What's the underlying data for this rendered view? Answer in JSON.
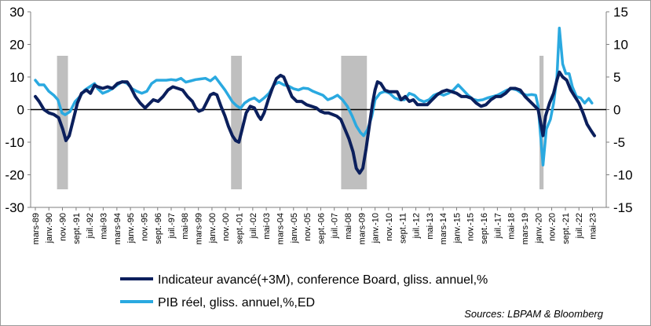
{
  "chart_data": {
    "type": "line",
    "title": "",
    "xlabel": "",
    "ylabel": "",
    "ylim": [
      -30,
      30
    ],
    "y_ticks": [
      "30",
      "20",
      "10",
      "0",
      "-10",
      "-20",
      "-30"
    ],
    "y2lim": [
      -15,
      15
    ],
    "y2_ticks": [
      "15",
      "10",
      "5",
      "0",
      "-5",
      "-10",
      "-15"
    ],
    "x_range": [
      1989.17,
      2023.5
    ],
    "x_ticks": [
      {
        "label": "mars-89",
        "t": 1989.17
      },
      {
        "label": "janv.-90",
        "t": 1990.0
      },
      {
        "label": "nov.-90",
        "t": 1990.83
      },
      {
        "label": "sept.-91",
        "t": 1991.67
      },
      {
        "label": "juil.-92",
        "t": 1992.5
      },
      {
        "label": "mai-93",
        "t": 1993.33
      },
      {
        "label": "mars-94",
        "t": 1994.17
      },
      {
        "label": "janv.-95",
        "t": 1995.0
      },
      {
        "label": "nov.-95",
        "t": 1995.83
      },
      {
        "label": "sept.-96",
        "t": 1996.67
      },
      {
        "label": "juil.-97",
        "t": 1997.5
      },
      {
        "label": "mai-98",
        "t": 1998.33
      },
      {
        "label": "mars-99",
        "t": 1999.17
      },
      {
        "label": "janv.-00",
        "t": 2000.0
      },
      {
        "label": "nov.-00",
        "t": 2000.83
      },
      {
        "label": "sept.-01",
        "t": 2001.67
      },
      {
        "label": "juil.-02",
        "t": 2002.5
      },
      {
        "label": "mai-03",
        "t": 2003.33
      },
      {
        "label": "mars-04",
        "t": 2004.17
      },
      {
        "label": "janv.-05",
        "t": 2005.0
      },
      {
        "label": "nov.-05",
        "t": 2005.83
      },
      {
        "label": "sept.-06",
        "t": 2006.67
      },
      {
        "label": "juil.-07",
        "t": 2007.5
      },
      {
        "label": "mai-08",
        "t": 2008.33
      },
      {
        "label": "mars-09",
        "t": 2009.17
      },
      {
        "label": "janv.-10",
        "t": 2010.0
      },
      {
        "label": "nov.-10",
        "t": 2010.83
      },
      {
        "label": "sept.-11",
        "t": 2011.67
      },
      {
        "label": "juil.-12",
        "t": 2012.5
      },
      {
        "label": "mai-13",
        "t": 2013.33
      },
      {
        "label": "mars-14",
        "t": 2014.17
      },
      {
        "label": "janv.-15",
        "t": 2015.0
      },
      {
        "label": "nov.-15",
        "t": 2015.83
      },
      {
        "label": "sept.-16",
        "t": 2016.67
      },
      {
        "label": "juil.-17",
        "t": 2017.5
      },
      {
        "label": "mai-18",
        "t": 2018.33
      },
      {
        "label": "mars-19",
        "t": 2019.17
      },
      {
        "label": "janv.-20",
        "t": 2020.0
      },
      {
        "label": "nov.-20",
        "t": 2020.83
      },
      {
        "label": "sept.-21",
        "t": 2021.67
      },
      {
        "label": "juil.-22",
        "t": 2022.5
      },
      {
        "label": "mai-23",
        "t": 2023.33
      }
    ],
    "recessions": [
      [
        1990.5,
        1991.17
      ],
      [
        2001.17,
        2001.83
      ],
      [
        2007.92,
        2009.5
      ],
      [
        2020.08,
        2020.33
      ]
    ],
    "legend_position": "bottom",
    "grid": false,
    "series": [
      {
        "name": "Indicateur avancé(+3M), conference Board, gliss. annuel,%",
        "axis": "left",
        "color": "#0b1f5c",
        "points": [
          [
            1989.17,
            4
          ],
          [
            1989.4,
            2.5
          ],
          [
            1989.7,
            0
          ],
          [
            1990.0,
            -1
          ],
          [
            1990.3,
            -1.5
          ],
          [
            1990.6,
            -2.5
          ],
          [
            1990.85,
            -6
          ],
          [
            1991.05,
            -9.5
          ],
          [
            1991.25,
            -8
          ],
          [
            1991.5,
            -3
          ],
          [
            1991.75,
            2
          ],
          [
            1992.0,
            5
          ],
          [
            1992.3,
            6
          ],
          [
            1992.55,
            5
          ],
          [
            1992.8,
            7.5
          ],
          [
            1993.0,
            7
          ],
          [
            1993.3,
            6.5
          ],
          [
            1993.6,
            7
          ],
          [
            1993.9,
            6.5
          ],
          [
            1994.2,
            8
          ],
          [
            1994.5,
            8.5
          ],
          [
            1994.8,
            8.5
          ],
          [
            1995.0,
            7
          ],
          [
            1995.3,
            4
          ],
          [
            1995.6,
            2
          ],
          [
            1995.9,
            0.5
          ],
          [
            1996.1,
            1.5
          ],
          [
            1996.4,
            3
          ],
          [
            1996.7,
            2.5
          ],
          [
            1997.0,
            4
          ],
          [
            1997.3,
            6
          ],
          [
            1997.6,
            7
          ],
          [
            1997.9,
            6.5
          ],
          [
            1998.2,
            6
          ],
          [
            1998.5,
            4
          ],
          [
            1998.8,
            2.5
          ],
          [
            1999.0,
            0.5
          ],
          [
            1999.2,
            -0.5
          ],
          [
            1999.45,
            0
          ],
          [
            1999.7,
            2.5
          ],
          [
            1999.9,
            4.5
          ],
          [
            2000.1,
            5
          ],
          [
            2000.3,
            4.5
          ],
          [
            2000.55,
            1
          ],
          [
            2000.8,
            -2
          ],
          [
            2001.0,
            -5
          ],
          [
            2001.25,
            -8
          ],
          [
            2001.45,
            -9.5
          ],
          [
            2001.65,
            -10
          ],
          [
            2001.85,
            -6
          ],
          [
            2002.1,
            -1
          ],
          [
            2002.35,
            1
          ],
          [
            2002.6,
            0.5
          ],
          [
            2002.85,
            -2
          ],
          [
            2003.0,
            -3
          ],
          [
            2003.2,
            -1
          ],
          [
            2003.45,
            3
          ],
          [
            2003.7,
            6.5
          ],
          [
            2003.95,
            9.5
          ],
          [
            2004.2,
            10.5
          ],
          [
            2004.4,
            10
          ],
          [
            2004.65,
            7
          ],
          [
            2004.9,
            4
          ],
          [
            2005.2,
            2.5
          ],
          [
            2005.5,
            2.5
          ],
          [
            2005.8,
            1.5
          ],
          [
            2006.1,
            1
          ],
          [
            2006.4,
            0.5
          ],
          [
            2006.65,
            -0.5
          ],
          [
            2006.9,
            -1
          ],
          [
            2007.15,
            -1
          ],
          [
            2007.4,
            -1.5
          ],
          [
            2007.65,
            -2
          ],
          [
            2007.9,
            -3
          ],
          [
            2008.15,
            -6
          ],
          [
            2008.4,
            -9
          ],
          [
            2008.65,
            -13
          ],
          [
            2008.85,
            -18
          ],
          [
            2009.05,
            -19.5
          ],
          [
            2009.25,
            -18
          ],
          [
            2009.45,
            -12
          ],
          [
            2009.65,
            -5
          ],
          [
            2009.85,
            2
          ],
          [
            2010.0,
            6
          ],
          [
            2010.15,
            8.5
          ],
          [
            2010.35,
            8
          ],
          [
            2010.6,
            6
          ],
          [
            2010.85,
            5.5
          ],
          [
            2011.1,
            5.5
          ],
          [
            2011.35,
            5.5
          ],
          [
            2011.6,
            3
          ],
          [
            2011.85,
            4
          ],
          [
            2012.1,
            2.5
          ],
          [
            2012.35,
            3
          ],
          [
            2012.6,
            1.5
          ],
          [
            2012.9,
            1.5
          ],
          [
            2013.2,
            1.5
          ],
          [
            2013.5,
            3
          ],
          [
            2013.8,
            4.5
          ],
          [
            2014.1,
            5.5
          ],
          [
            2014.4,
            6
          ],
          [
            2014.7,
            5.5
          ],
          [
            2015.0,
            5
          ],
          [
            2015.3,
            4
          ],
          [
            2015.6,
            4
          ],
          [
            2015.9,
            3.5
          ],
          [
            2016.2,
            2
          ],
          [
            2016.5,
            1
          ],
          [
            2016.8,
            1.5
          ],
          [
            2017.1,
            3
          ],
          [
            2017.4,
            4
          ],
          [
            2017.7,
            4
          ],
          [
            2018.0,
            5
          ],
          [
            2018.3,
            6.5
          ],
          [
            2018.6,
            6.5
          ],
          [
            2018.9,
            6
          ],
          [
            2019.2,
            4
          ],
          [
            2019.5,
            2.5
          ],
          [
            2019.8,
            1
          ],
          [
            2020.0,
            0
          ],
          [
            2020.15,
            -4
          ],
          [
            2020.3,
            -8
          ],
          [
            2020.45,
            -2
          ],
          [
            2020.7,
            2
          ],
          [
            2020.95,
            5
          ],
          [
            2021.15,
            9
          ],
          [
            2021.3,
            11.5
          ],
          [
            2021.5,
            10
          ],
          [
            2021.75,
            9
          ],
          [
            2022.0,
            6
          ],
          [
            2022.25,
            4
          ],
          [
            2022.5,
            2
          ],
          [
            2022.75,
            -1
          ],
          [
            2023.0,
            -4.5
          ],
          [
            2023.25,
            -6.5
          ],
          [
            2023.45,
            -8
          ]
        ]
      },
      {
        "name": "PIB réel, gliss. annuel,%,ED",
        "axis": "right",
        "color": "#2aa9e0",
        "points": [
          [
            1989.17,
            4.5
          ],
          [
            1989.4,
            3.8
          ],
          [
            1989.7,
            3.8
          ],
          [
            1990.0,
            2.8
          ],
          [
            1990.3,
            2.2
          ],
          [
            1990.55,
            1.5
          ],
          [
            1990.8,
            -0.5
          ],
          [
            1991.0,
            -0.8
          ],
          [
            1991.3,
            -0.3
          ],
          [
            1991.6,
            1.2
          ],
          [
            1991.9,
            2
          ],
          [
            1992.2,
            3
          ],
          [
            1992.5,
            3.5
          ],
          [
            1992.8,
            4
          ],
          [
            1993.0,
            3.2
          ],
          [
            1993.3,
            2.5
          ],
          [
            1993.6,
            2.8
          ],
          [
            1993.9,
            3.2
          ],
          [
            1994.2,
            3.8
          ],
          [
            1994.5,
            4.3
          ],
          [
            1994.8,
            4
          ],
          [
            1995.1,
            3.2
          ],
          [
            1995.4,
            2.8
          ],
          [
            1995.7,
            2.5
          ],
          [
            1996.0,
            2.8
          ],
          [
            1996.3,
            4
          ],
          [
            1996.6,
            4.5
          ],
          [
            1996.9,
            4.5
          ],
          [
            1997.2,
            4.5
          ],
          [
            1997.5,
            4.6
          ],
          [
            1997.8,
            4.5
          ],
          [
            1998.1,
            4.8
          ],
          [
            1998.4,
            4.2
          ],
          [
            1998.7,
            4.4
          ],
          [
            1999.0,
            4.6
          ],
          [
            1999.3,
            4.7
          ],
          [
            1999.6,
            4.8
          ],
          [
            1999.9,
            4.4
          ],
          [
            2000.2,
            5
          ],
          [
            2000.5,
            4
          ],
          [
            2000.8,
            3
          ],
          [
            2001.0,
            2.2
          ],
          [
            2001.25,
            1.2
          ],
          [
            2001.5,
            0.6
          ],
          [
            2001.75,
            0.2
          ],
          [
            2002.0,
            1
          ],
          [
            2002.3,
            1.5
          ],
          [
            2002.6,
            1.8
          ],
          [
            2002.9,
            1.2
          ],
          [
            2003.2,
            1.8
          ],
          [
            2003.5,
            2.5
          ],
          [
            2003.8,
            3.8
          ],
          [
            2004.1,
            4.2
          ],
          [
            2004.4,
            3.8
          ],
          [
            2004.7,
            3.6
          ],
          [
            2005.0,
            3.2
          ],
          [
            2005.3,
            3
          ],
          [
            2005.6,
            3.3
          ],
          [
            2005.9,
            3.2
          ],
          [
            2006.2,
            2.8
          ],
          [
            2006.5,
            2.5
          ],
          [
            2006.8,
            2.2
          ],
          [
            2007.1,
            1.5
          ],
          [
            2007.4,
            1.8
          ],
          [
            2007.7,
            2.2
          ],
          [
            2008.0,
            1.5
          ],
          [
            2008.3,
            0.5
          ],
          [
            2008.6,
            -1
          ],
          [
            2008.85,
            -2.5
          ],
          [
            2009.1,
            -3.5
          ],
          [
            2009.3,
            -4
          ],
          [
            2009.55,
            -3
          ],
          [
            2009.8,
            -1
          ],
          [
            2010.0,
            1.5
          ],
          [
            2010.3,
            2.5
          ],
          [
            2010.6,
            2.8
          ],
          [
            2010.9,
            2.5
          ],
          [
            2011.2,
            1.8
          ],
          [
            2011.5,
            1.5
          ],
          [
            2011.8,
            1.5
          ],
          [
            2012.1,
            2.5
          ],
          [
            2012.4,
            2.2
          ],
          [
            2012.7,
            1.5
          ],
          [
            2013.0,
            1.2
          ],
          [
            2013.3,
            1.5
          ],
          [
            2013.6,
            2.2
          ],
          [
            2013.9,
            2.5
          ],
          [
            2014.2,
            2.2
          ],
          [
            2014.5,
            2.5
          ],
          [
            2014.8,
            3
          ],
          [
            2015.1,
            3.8
          ],
          [
            2015.4,
            3
          ],
          [
            2015.7,
            2.2
          ],
          [
            2016.0,
            1.6
          ],
          [
            2016.3,
            1.4
          ],
          [
            2016.6,
            1.5
          ],
          [
            2016.9,
            1.8
          ],
          [
            2017.2,
            2
          ],
          [
            2017.5,
            2.2
          ],
          [
            2017.8,
            2.6
          ],
          [
            2018.1,
            3
          ],
          [
            2018.4,
            3.2
          ],
          [
            2018.7,
            3
          ],
          [
            2019.0,
            2.5
          ],
          [
            2019.3,
            2.2
          ],
          [
            2019.6,
            2.3
          ],
          [
            2019.85,
            2.2
          ],
          [
            2020.0,
            0.5
          ],
          [
            2020.15,
            -4
          ],
          [
            2020.3,
            -8.5
          ],
          [
            2020.5,
            -3
          ],
          [
            2020.75,
            -1.5
          ],
          [
            2020.95,
            1
          ],
          [
            2021.15,
            5
          ],
          [
            2021.3,
            12.5
          ],
          [
            2021.5,
            7
          ],
          [
            2021.7,
            5.5
          ],
          [
            2021.9,
            5.5
          ],
          [
            2022.1,
            3.5
          ],
          [
            2022.35,
            2
          ],
          [
            2022.6,
            1.8
          ],
          [
            2022.85,
            1
          ],
          [
            2023.1,
            1.7
          ],
          [
            2023.3,
            1
          ]
        ]
      }
    ]
  },
  "legend": {
    "items": [
      {
        "label": "Indicateur avancé(+3M), conference Board, gliss. annuel,%",
        "color": "#0b1f5c"
      },
      {
        "label": "PIB réel, gliss. annuel,%,ED",
        "color": "#2aa9e0"
      }
    ]
  },
  "source": "Sources: LBPAM & Bloomberg"
}
